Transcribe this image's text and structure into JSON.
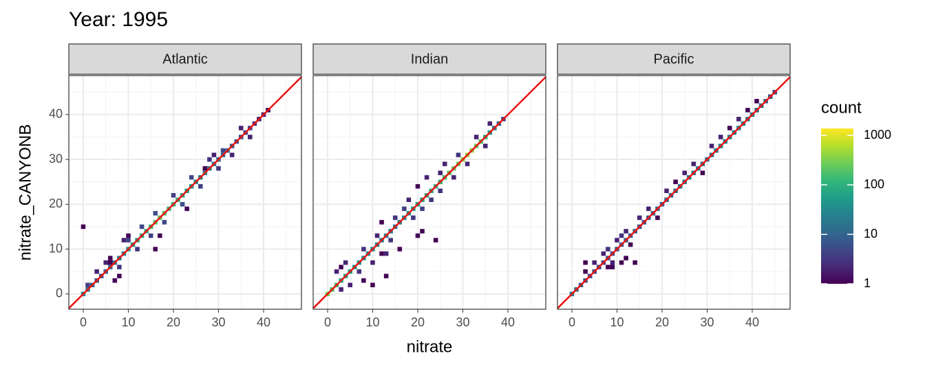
{
  "chart_data": {
    "type": "bin2d",
    "title": "Year: 1995",
    "x_label": "nitrate",
    "y_label": "nitrate_CANYONB",
    "xlim": [
      -3.2,
      48.4
    ],
    "ylim": [
      -3.4,
      48.7
    ],
    "xticks": [
      0,
      10,
      20,
      30,
      40
    ],
    "yticks": [
      0,
      10,
      20,
      30,
      40
    ],
    "grid": true,
    "minor_grid": true,
    "binwidth": 1,
    "identity_line_color": "#ee1111",
    "legend_title": "count",
    "color_log": true,
    "colorlim": [
      1,
      1380
    ],
    "colorticks": [
      1,
      10,
      100,
      1000
    ],
    "palette": [
      "#440154",
      "#482878",
      "#3e4989",
      "#31688e",
      "#26828e",
      "#1f9e89",
      "#35b779",
      "#6ece58",
      "#b5de2b",
      "#fde725"
    ],
    "facets": [
      {
        "name": "Atlantic",
        "x": [
          0,
          1,
          2,
          3,
          4,
          5,
          6,
          7,
          8,
          9,
          10,
          11,
          12,
          13,
          14,
          15,
          16,
          17,
          18,
          19,
          20,
          21,
          22,
          23,
          24,
          25,
          26,
          27,
          28,
          29,
          30,
          31,
          32,
          33,
          34,
          35,
          36,
          37,
          38,
          39,
          40,
          41,
          1,
          3,
          5,
          6,
          8,
          9,
          10,
          12,
          13,
          15,
          16,
          18,
          20,
          22,
          24,
          26,
          28,
          30,
          31,
          33,
          35,
          37,
          0,
          6,
          8,
          10,
          17,
          23,
          27,
          16,
          7,
          29
        ],
        "y": [
          0,
          1,
          2,
          3,
          4,
          5,
          6,
          7,
          8,
          9,
          10,
          11,
          12,
          13,
          14,
          15,
          16,
          17,
          18,
          19,
          20,
          21,
          22,
          23,
          24,
          25,
          26,
          27,
          28,
          29,
          30,
          31,
          32,
          33,
          34,
          35,
          36,
          37,
          38,
          39,
          40,
          41,
          2,
          5,
          7,
          8,
          6,
          12,
          12,
          10,
          15,
          13,
          18,
          16,
          22,
          20,
          26,
          24,
          30,
          28,
          32,
          31,
          37,
          35,
          15,
          7,
          4,
          13,
          13,
          19,
          28,
          10,
          3,
          31
        ],
        "count": [
          30,
          20,
          10,
          8,
          6,
          10,
          15,
          20,
          25,
          30,
          40,
          50,
          60,
          80,
          100,
          150,
          200,
          250,
          200,
          150,
          120,
          100,
          80,
          60,
          50,
          40,
          30,
          30,
          25,
          20,
          15,
          15,
          12,
          10,
          8,
          6,
          5,
          4,
          3,
          2,
          2,
          1,
          4,
          2,
          2,
          1,
          3,
          2,
          4,
          3,
          5,
          4,
          6,
          5,
          4,
          6,
          5,
          4,
          3,
          3,
          5,
          2,
          2,
          2,
          1,
          1,
          1,
          1,
          1,
          1,
          1,
          1,
          1,
          2
        ]
      },
      {
        "name": "Indian",
        "x": [
          0,
          1,
          2,
          3,
          4,
          5,
          6,
          7,
          8,
          9,
          10,
          11,
          12,
          13,
          14,
          15,
          16,
          17,
          18,
          19,
          20,
          21,
          22,
          23,
          24,
          25,
          26,
          27,
          28,
          29,
          30,
          31,
          32,
          33,
          34,
          35,
          36,
          37,
          38,
          39,
          2,
          3,
          5,
          4,
          7,
          8,
          10,
          11,
          13,
          12,
          14,
          15,
          17,
          19,
          18,
          20,
          21,
          22,
          23,
          25,
          26,
          28,
          29,
          31,
          33,
          35,
          36,
          12,
          10,
          13,
          16,
          24,
          20,
          21,
          25,
          3,
          8
        ],
        "y": [
          0,
          1,
          2,
          3,
          4,
          5,
          6,
          7,
          8,
          9,
          10,
          11,
          12,
          13,
          14,
          15,
          16,
          17,
          18,
          19,
          20,
          21,
          22,
          23,
          24,
          25,
          26,
          27,
          28,
          29,
          30,
          31,
          32,
          33,
          34,
          35,
          36,
          37,
          38,
          39,
          5,
          1,
          2,
          7,
          5,
          10,
          7,
          13,
          9,
          16,
          12,
          17,
          19,
          17,
          21,
          24,
          19,
          26,
          21,
          23,
          29,
          26,
          31,
          29,
          35,
          33,
          38,
          9,
          2,
          4,
          10,
          12,
          13,
          14,
          27,
          6,
          3
        ],
        "count": [
          300,
          200,
          150,
          100,
          80,
          60,
          50,
          40,
          40,
          35,
          30,
          30,
          25,
          25,
          20,
          20,
          25,
          30,
          40,
          50,
          60,
          70,
          80,
          90,
          100,
          120,
          150,
          200,
          250,
          300,
          400,
          500,
          400,
          300,
          200,
          100,
          50,
          20,
          10,
          5,
          2,
          2,
          2,
          2,
          3,
          3,
          2,
          2,
          2,
          1,
          3,
          3,
          4,
          3,
          2,
          1,
          4,
          2,
          3,
          3,
          2,
          2,
          3,
          2,
          2,
          2,
          2,
          1,
          1,
          1,
          1,
          1,
          1,
          1,
          2,
          1,
          1
        ]
      },
      {
        "name": "Pacific",
        "x": [
          0,
          1,
          2,
          3,
          4,
          5,
          6,
          7,
          8,
          9,
          10,
          11,
          12,
          13,
          14,
          15,
          16,
          17,
          18,
          19,
          20,
          21,
          22,
          23,
          24,
          25,
          26,
          27,
          28,
          29,
          30,
          31,
          32,
          33,
          34,
          35,
          36,
          37,
          38,
          39,
          40,
          41,
          42,
          43,
          44,
          45,
          3,
          5,
          7,
          8,
          9,
          10,
          11,
          12,
          13,
          15,
          17,
          19,
          21,
          23,
          25,
          27,
          29,
          31,
          33,
          35,
          37,
          39,
          41,
          3,
          8,
          12,
          14,
          11,
          9
        ],
        "y": [
          0,
          1,
          2,
          3,
          4,
          5,
          6,
          7,
          8,
          9,
          10,
          11,
          12,
          13,
          14,
          15,
          16,
          17,
          18,
          19,
          20,
          21,
          22,
          23,
          24,
          25,
          26,
          27,
          28,
          29,
          30,
          31,
          32,
          33,
          34,
          35,
          36,
          37,
          38,
          39,
          40,
          41,
          42,
          43,
          44,
          45,
          5,
          7,
          9,
          10,
          7,
          12,
          13,
          14,
          11,
          17,
          19,
          17,
          23,
          25,
          27,
          29,
          27,
          33,
          35,
          37,
          39,
          41,
          43,
          7,
          6,
          8,
          7,
          7,
          6
        ],
        "count": [
          20,
          15,
          10,
          8,
          6,
          5,
          5,
          5,
          6,
          6,
          8,
          10,
          10,
          10,
          10,
          8,
          8,
          8,
          10,
          10,
          10,
          12,
          12,
          15,
          15,
          15,
          15,
          15,
          15,
          15,
          15,
          15,
          20,
          20,
          20,
          20,
          20,
          20,
          20,
          15,
          15,
          12,
          10,
          8,
          6,
          4,
          1,
          2,
          2,
          3,
          2,
          2,
          3,
          2,
          1,
          2,
          2,
          1,
          2,
          1,
          2,
          2,
          1,
          2,
          2,
          1,
          2,
          1,
          1,
          1,
          1,
          1,
          1,
          1,
          1
        ]
      }
    ]
  }
}
